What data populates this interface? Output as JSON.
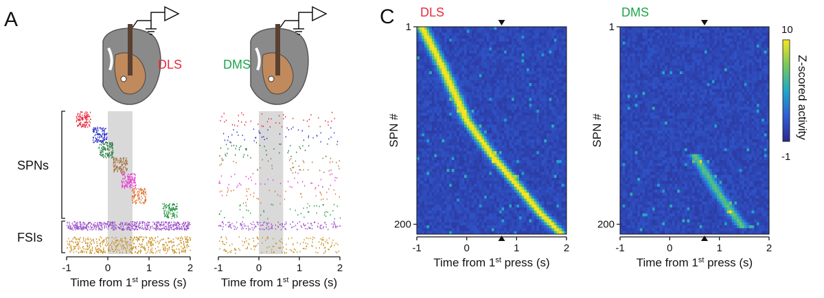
{
  "panels": {
    "a_letter": "A",
    "c_letter": "C"
  },
  "colors": {
    "dls": "#e8283a",
    "dms": "#1aa64a",
    "shade": "#d9d9d9",
    "heatmap_bg": "#3a3aa8"
  },
  "panel_a": {
    "regions": [
      "DLS",
      "DMS"
    ],
    "groups": [
      "SPNs",
      "FSIs"
    ],
    "xlabel_main": "Time from 1",
    "xlabel_sup": "st",
    "xlabel_tail": " press (s)",
    "xticks": [
      "-1",
      "0",
      "1",
      "2"
    ],
    "shaded_window": [
      0,
      0.6
    ],
    "spn_colors": [
      "#e8283a",
      "#2e35c8",
      "#1f7a3a",
      "#a87040",
      "#e63cd2",
      "#e07030",
      "#2a9a48"
    ],
    "fsi_colors": [
      "#9b4fc9",
      "#c89020"
    ]
  },
  "panel_c": {
    "titles": [
      "DLS",
      "DMS"
    ],
    "ylabel": "SPN #",
    "yticks": [
      "1",
      "200"
    ],
    "xticks": [
      "-1",
      "0",
      "1",
      "2"
    ],
    "xlabel_main": "Time from 1",
    "xlabel_sup": "st",
    "xlabel_tail": " press (s)",
    "marker_time": 0.7,
    "colorbar_label": "Z-scored activity",
    "colorbar_ticks": [
      "10",
      "-1"
    ]
  },
  "chart_data": [
    {
      "type": "scatter",
      "title": "DLS",
      "xlabel": "Time from 1st press (s)",
      "xlim": [
        -1,
        2
      ],
      "groups": [
        {
          "name": "SPNs",
          "peak_times": [
            -0.6,
            -0.2,
            -0.05,
            0.3,
            0.5,
            0.75,
            1.5
          ]
        },
        {
          "name": "FSIs",
          "peak_times": []
        }
      ]
    },
    {
      "type": "scatter",
      "title": "DMS",
      "xlabel": "Time from 1st press (s)",
      "xlim": [
        -1,
        2
      ]
    },
    {
      "type": "heatmap",
      "title": "DLS",
      "xlabel": "Time from 1st press (s)",
      "ylabel": "SPN #",
      "xlim": [
        -1,
        2
      ],
      "ylim": [
        1,
        210
      ],
      "color_range": [
        -1,
        10
      ],
      "peak_trajectory": {
        "x": [
          -0.9,
          -0.5,
          0,
          0.5,
          1.0,
          1.5,
          1.9
        ],
        "row": [
          1,
          40,
          95,
          130,
          160,
          190,
          210
        ]
      }
    },
    {
      "type": "heatmap",
      "title": "DMS",
      "xlabel": "Time from 1st press (s)",
      "ylabel": "SPN #",
      "xlim": [
        -1,
        2
      ],
      "ylim": [
        1,
        210
      ],
      "color_range": [
        -1,
        10
      ],
      "peak_trajectory": {
        "x": [
          0.5,
          1.0,
          1.5
        ],
        "row": [
          130,
          170,
          205
        ]
      }
    }
  ]
}
